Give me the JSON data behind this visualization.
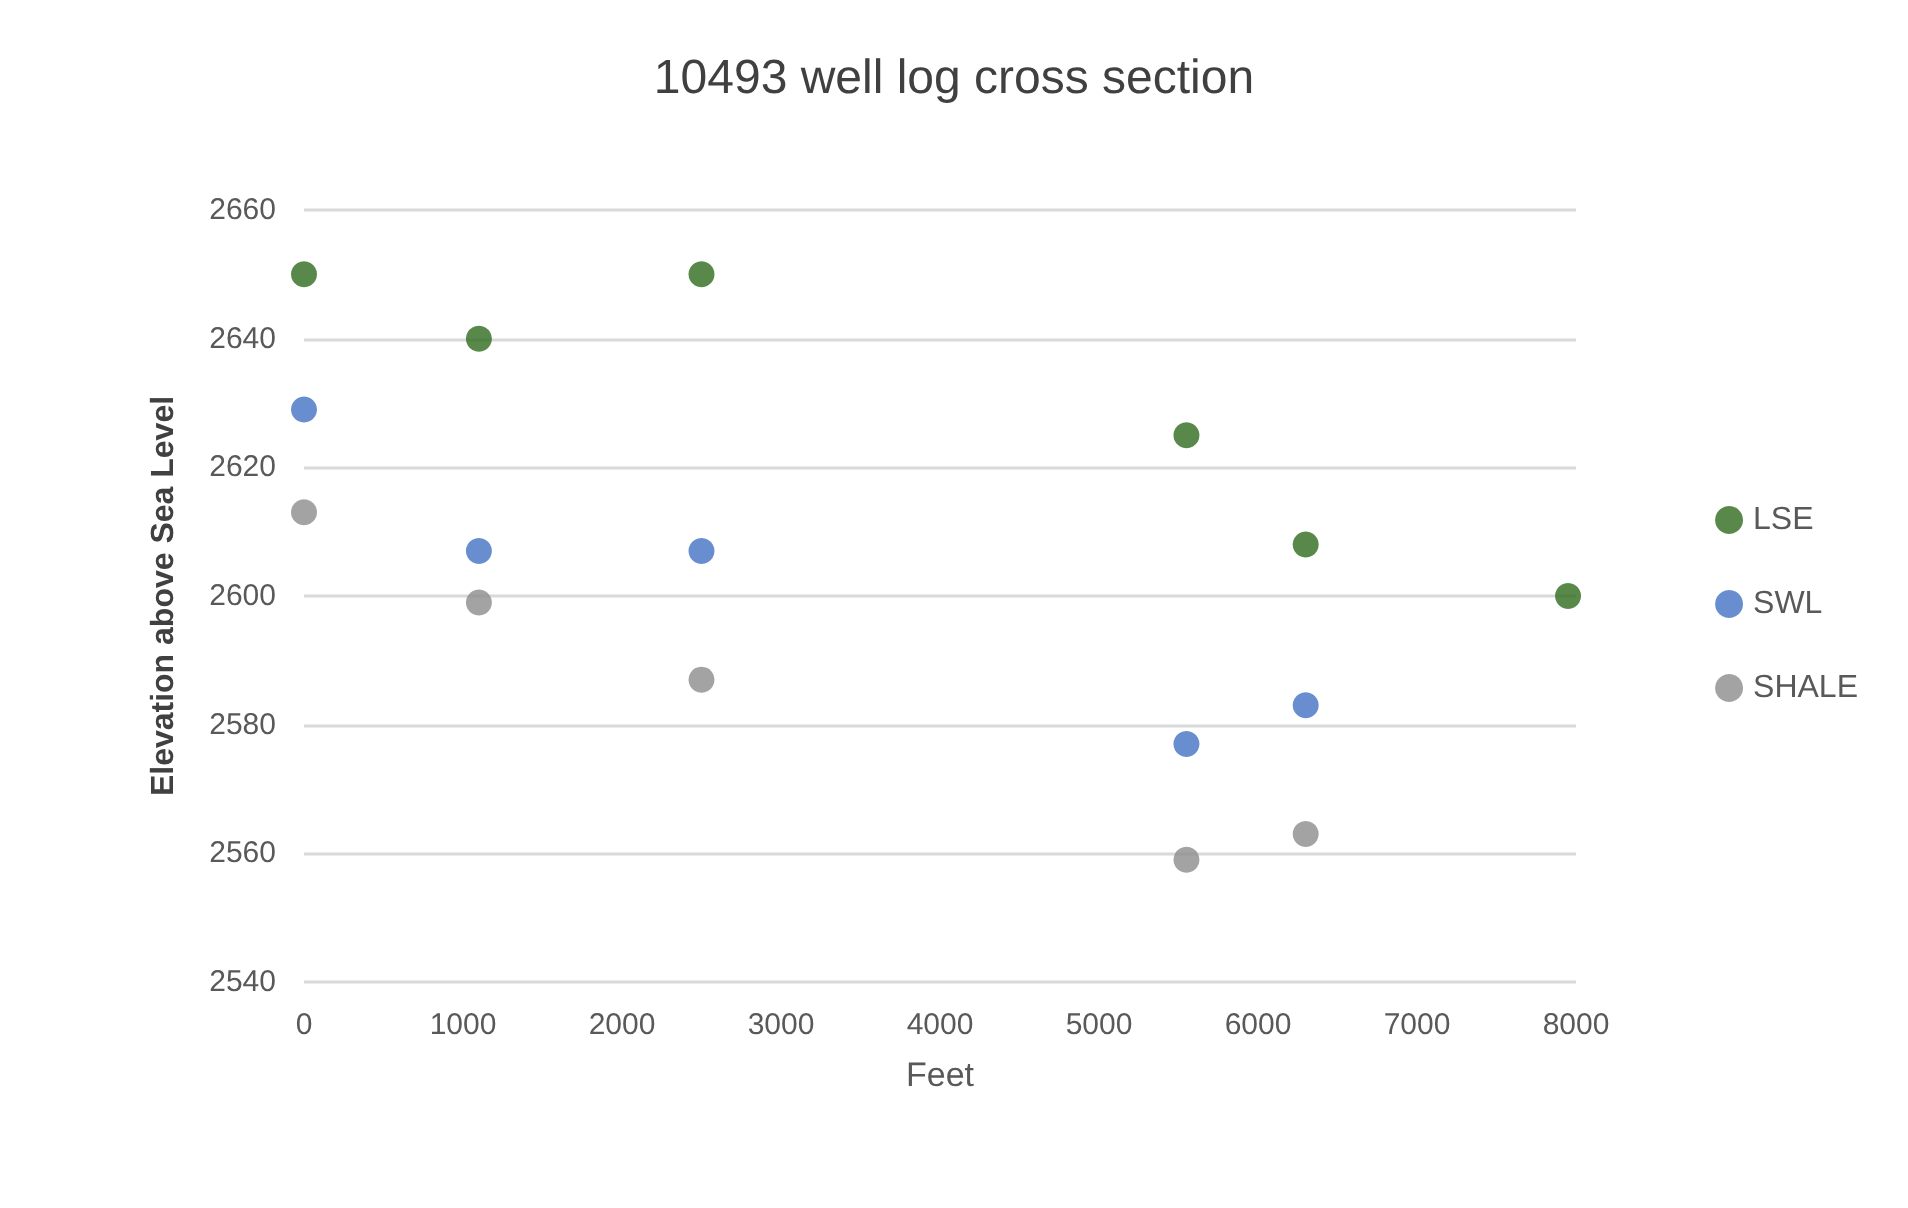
{
  "chart_data": {
    "type": "scatter",
    "title": "10493 well log cross section",
    "xlabel": "Feet",
    "ylabel": "Elevation above Sea Level",
    "series": [
      {
        "name": "LSE",
        "color": "#2f6a1e",
        "x": [
          0,
          1100,
          2500,
          5550,
          6300,
          7950
        ],
        "values": [
          2650,
          2640,
          2650,
          2625,
          2608,
          2600
        ]
      },
      {
        "name": "SWL",
        "color": "#4472c4",
        "x": [
          0,
          1100,
          2500,
          5550,
          6300
        ],
        "values": [
          2629,
          2607,
          2607,
          2577,
          2583
        ]
      },
      {
        "name": "SHALE",
        "color": "#8c8c8c",
        "x": [
          0,
          1100,
          2500,
          5550,
          6300
        ],
        "values": [
          2613,
          2599,
          2587,
          2559,
          2563
        ]
      }
    ],
    "xlim": [
      0,
      8000
    ],
    "xticks": [
      0,
      1000,
      2000,
      3000,
      4000,
      5000,
      6000,
      7000,
      8000
    ],
    "ylim": [
      2540,
      2660
    ],
    "yticks": [
      2540,
      2560,
      2580,
      2600,
      2620,
      2640,
      2660
    ],
    "grid": "y",
    "legend": "right",
    "marker": "circle"
  }
}
